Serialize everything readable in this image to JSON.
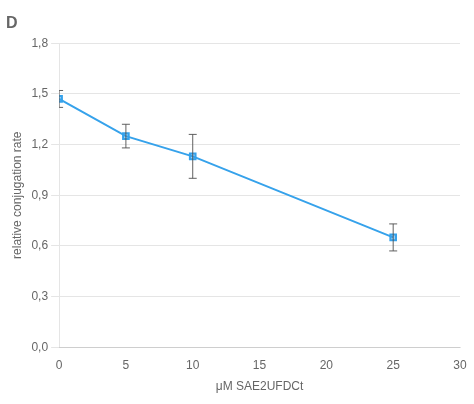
{
  "chart_data": {
    "type": "line",
    "title": "D",
    "x": [
      0,
      5,
      10,
      25
    ],
    "values": [
      1.47,
      1.25,
      1.13,
      0.65
    ],
    "yerr": [
      0.05,
      0.07,
      0.13,
      0.08
    ],
    "ylabel": "relative conjugation rate",
    "xlabel": "μM SAE2UFDCt",
    "xlim": [
      0,
      30
    ],
    "ylim": [
      0.0,
      1.8
    ],
    "xticks": [
      0,
      5,
      10,
      15,
      20,
      25,
      30
    ],
    "yticks": [
      {
        "value": 0.0,
        "label": "0,0"
      },
      {
        "value": 0.3,
        "label": "0,3"
      },
      {
        "value": 0.6,
        "label": "0,6"
      },
      {
        "value": 0.9,
        "label": "0,9"
      },
      {
        "value": 1.2,
        "label": "1,2"
      },
      {
        "value": 1.5,
        "label": "1,5"
      },
      {
        "value": 1.8,
        "label": "1,8"
      }
    ],
    "grid": "y",
    "marker": "square",
    "line_style": "solid"
  }
}
